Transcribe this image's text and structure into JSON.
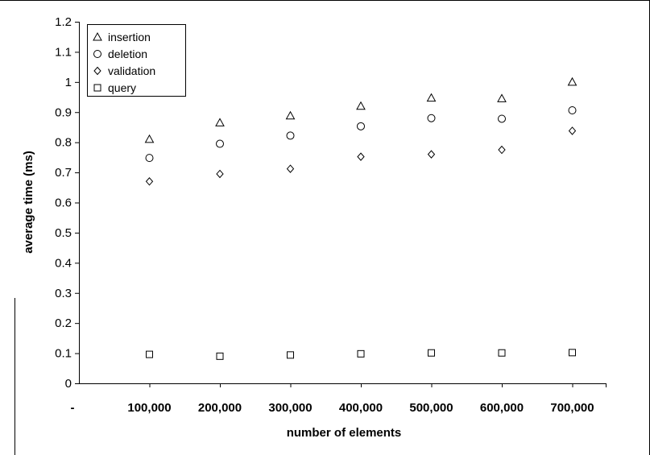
{
  "chart_data": {
    "type": "scatter",
    "title": "",
    "xlabel": "number of elements",
    "ylabel": "average time (ms)",
    "ylim": [
      0,
      1.2
    ],
    "y_ticks": [
      "0",
      "0.1",
      "0.2",
      "0.3",
      "0.4",
      "0.5",
      "0.6",
      "0.7",
      "0.8",
      "0.9",
      "1",
      "1.1",
      "1.2"
    ],
    "categories": [
      "-",
      "100,000",
      "200,000",
      "300,000",
      "400,000",
      "500,000",
      "600,000",
      "700,000"
    ],
    "x": [
      100000,
      200000,
      300000,
      400000,
      500000,
      600000,
      700000
    ],
    "grid": false,
    "legend_position": "top-left",
    "series": [
      {
        "name": "insertion",
        "marker": "triangle",
        "values": [
          0.81,
          0.865,
          0.888,
          0.92,
          0.947,
          0.945,
          1.0
        ]
      },
      {
        "name": "deletion",
        "marker": "circle",
        "values": [
          0.748,
          0.795,
          0.822,
          0.853,
          0.88,
          0.878,
          0.906
        ]
      },
      {
        "name": "validation",
        "marker": "diamond",
        "values": [
          0.67,
          0.695,
          0.712,
          0.752,
          0.76,
          0.775,
          0.838
        ]
      },
      {
        "name": "query",
        "marker": "square",
        "values": [
          0.096,
          0.09,
          0.094,
          0.098,
          0.101,
          0.101,
          0.102
        ]
      }
    ]
  }
}
